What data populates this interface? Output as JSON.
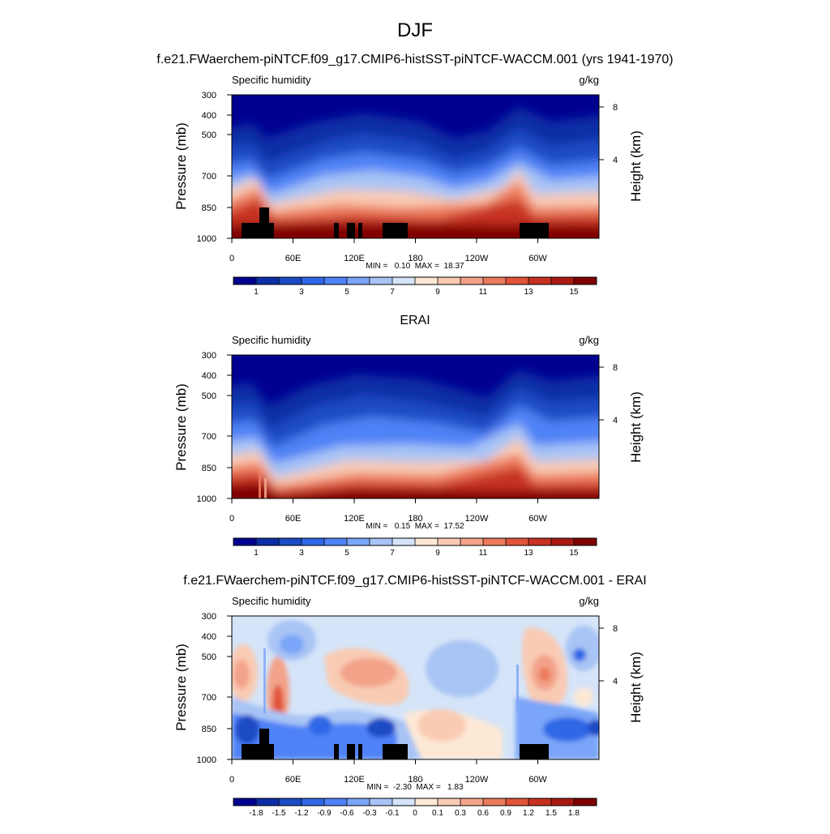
{
  "figure": {
    "title": "DJF",
    "panel_titles": [
      "f.e21.FWaerchem-piNTCF.f09_g17.CMIP6-histSST-piNTCF-WACCM.001 (yrs 1941-1970)",
      "ERAI",
      "f.e21.FWaerchem-piNTCF.f09_g17.CMIP6-histSST-piNTCF-WACCM.001 - ERAI"
    ]
  },
  "chart_data": [
    {
      "type": "heatmap",
      "title": "f.e21.FWaerchem-piNTCF.f09_g17.CMIP6-histSST-piNTCF-WACCM.001 (yrs 1941-1970)",
      "left_label": "Specific humidity",
      "units": "g/kg",
      "ylabel": "Pressure (mb)",
      "ylabel_right": "Height (km)",
      "x_ticks": [
        "0",
        "60E",
        "120E",
        "180",
        "120W",
        "60W"
      ],
      "x_tick_lon": [
        0,
        60,
        120,
        180,
        240,
        300
      ],
      "xlim": [
        0,
        360
      ],
      "y_ticks": [
        "300",
        "400",
        "500",
        "700",
        "850",
        "1000"
      ],
      "y_tick_p": [
        300,
        400,
        500,
        700,
        850,
        1000
      ],
      "ylim": [
        1000,
        300
      ],
      "y_scale": "log",
      "height_ticks": [
        "8",
        "4"
      ],
      "height_tick_km": [
        8,
        4
      ],
      "stats": "MIN =   0.10  MAX =  18.37",
      "min": 0.1,
      "max": 18.37,
      "colorbar_labels": [
        "1",
        "3",
        "5",
        "7",
        "9",
        "11",
        "13",
        "15"
      ],
      "colorbar_label_index": [
        1,
        3,
        5,
        7,
        9,
        11,
        13,
        15
      ],
      "colorbar_colors": [
        "#000090",
        "#0d2ea6",
        "#1a4bc4",
        "#2f68e6",
        "#4f82f6",
        "#7aa5f8",
        "#a8c4f5",
        "#d5e4f8",
        "#fde8d6",
        "#f9cbb3",
        "#f3a38a",
        "#ec7a5c",
        "#e0543a",
        "#c73122",
        "#a81a12",
        "#800000"
      ]
    },
    {
      "type": "heatmap",
      "title": "ERAI",
      "left_label": "Specific humidity",
      "units": "g/kg",
      "ylabel": "Pressure (mb)",
      "ylabel_right": "Height (km)",
      "x_ticks": [
        "0",
        "60E",
        "120E",
        "180",
        "120W",
        "60W"
      ],
      "x_tick_lon": [
        0,
        60,
        120,
        180,
        240,
        300
      ],
      "xlim": [
        0,
        360
      ],
      "y_ticks": [
        "300",
        "400",
        "500",
        "700",
        "850",
        "1000"
      ],
      "y_tick_p": [
        300,
        400,
        500,
        700,
        850,
        1000
      ],
      "ylim": [
        1000,
        300
      ],
      "y_scale": "log",
      "height_ticks": [
        "8",
        "4"
      ],
      "height_tick_km": [
        8,
        4
      ],
      "stats": "MIN =   0.15  MAX =  17.52",
      "min": 0.15,
      "max": 17.52,
      "colorbar_labels": [
        "1",
        "3",
        "5",
        "7",
        "9",
        "11",
        "13",
        "15"
      ],
      "colorbar_label_index": [
        1,
        3,
        5,
        7,
        9,
        11,
        13,
        15
      ],
      "colorbar_colors": [
        "#000090",
        "#0d2ea6",
        "#1a4bc4",
        "#2f68e6",
        "#4f82f6",
        "#7aa5f8",
        "#a8c4f5",
        "#d5e4f8",
        "#fde8d6",
        "#f9cbb3",
        "#f3a38a",
        "#ec7a5c",
        "#e0543a",
        "#c73122",
        "#a81a12",
        "#800000"
      ]
    },
    {
      "type": "heatmap",
      "title": "f.e21.FWaerchem-piNTCF.f09_g17.CMIP6-histSST-piNTCF-WACCM.001 - ERAI",
      "left_label": "Specific humidity",
      "units": "g/kg",
      "ylabel": "Pressure (mb)",
      "ylabel_right": "Height (km)",
      "x_ticks": [
        "0",
        "60E",
        "120E",
        "180",
        "120W",
        "60W"
      ],
      "x_tick_lon": [
        0,
        60,
        120,
        180,
        240,
        300
      ],
      "xlim": [
        0,
        360
      ],
      "y_ticks": [
        "300",
        "400",
        "500",
        "700",
        "850",
        "1000"
      ],
      "y_tick_p": [
        300,
        400,
        500,
        700,
        850,
        1000
      ],
      "ylim": [
        1000,
        300
      ],
      "y_scale": "log",
      "height_ticks": [
        "8",
        "4"
      ],
      "height_tick_km": [
        8,
        4
      ],
      "stats": "MIN =  -2.30  MAX =   1.83",
      "min": -2.3,
      "max": 1.83,
      "colorbar_labels": [
        "-1.8",
        "-1.5",
        "-1.2",
        "-0.9",
        "-0.6",
        "-0.3",
        "-0.1",
        "0",
        "0.1",
        "0.3",
        "0.6",
        "0.9",
        "1.2",
        "1.5",
        "1.8"
      ],
      "colorbar_label_index": [
        1,
        2,
        3,
        4,
        5,
        6,
        7,
        8,
        9,
        10,
        11,
        12,
        13,
        14,
        15
      ],
      "colorbar_colors": [
        "#000090",
        "#0d2ea6",
        "#1a4bc4",
        "#2f68e6",
        "#4f82f6",
        "#7aa5f8",
        "#a8c4f5",
        "#d5e4f8",
        "#fde8d6",
        "#f9cbb3",
        "#f3a38a",
        "#ec7a5c",
        "#e0543a",
        "#c73122",
        "#a81a12",
        "#800000"
      ]
    }
  ]
}
